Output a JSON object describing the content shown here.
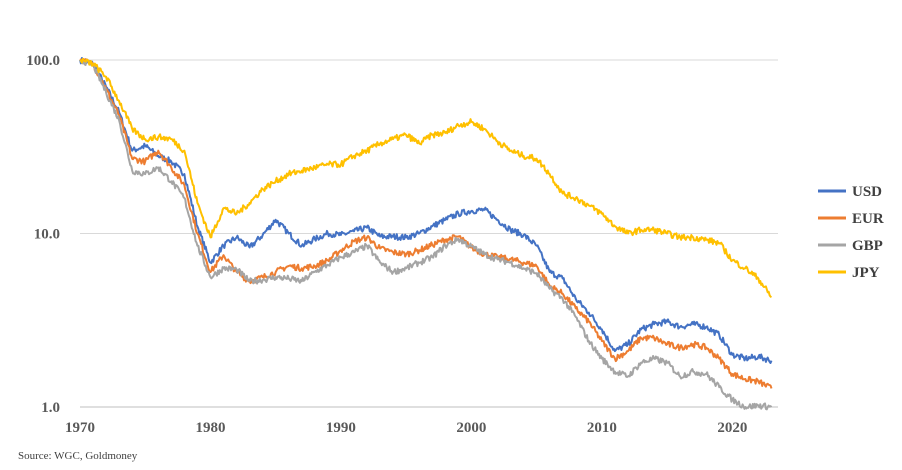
{
  "chart_data": {
    "type": "line",
    "title": "",
    "xlabel": "",
    "ylabel": "",
    "y_scale": "log",
    "xlim": [
      1970,
      2023.5
    ],
    "ylim": [
      1,
      100
    ],
    "x_ticks": [
      "1970",
      "1980",
      "1990",
      "2000",
      "2010",
      "2020"
    ],
    "y_ticks": [
      "1.0",
      "10.0",
      "100.0"
    ],
    "grid": "horizontal",
    "legend_position": "right",
    "series": [
      {
        "name": "USD",
        "color": "#4472C4",
        "points": [
          [
            1970,
            100
          ],
          [
            1971,
            95
          ],
          [
            1972,
            70
          ],
          [
            1973,
            50
          ],
          [
            1974,
            30
          ],
          [
            1975,
            32
          ],
          [
            1976,
            28
          ],
          [
            1977,
            26
          ],
          [
            1978,
            22
          ],
          [
            1979,
            11
          ],
          [
            1980,
            6.8
          ],
          [
            1981,
            8.5
          ],
          [
            1982,
            9.5
          ],
          [
            1983,
            8.3
          ],
          [
            1984,
            9.8
          ],
          [
            1985,
            12
          ],
          [
            1986,
            10
          ],
          [
            1987,
            8.5
          ],
          [
            1988,
            9.3
          ],
          [
            1989,
            10
          ],
          [
            1990,
            9.8
          ],
          [
            1991,
            10.3
          ],
          [
            1992,
            10.8
          ],
          [
            1993,
            9.6
          ],
          [
            1994,
            9.6
          ],
          [
            1995,
            9.5
          ],
          [
            1996,
            10
          ],
          [
            1997,
            11
          ],
          [
            1998,
            12
          ],
          [
            1999,
            13
          ],
          [
            2000,
            13.5
          ],
          [
            2001,
            13.7
          ],
          [
            2002,
            12
          ],
          [
            2003,
            10.5
          ],
          [
            2004,
            9.8
          ],
          [
            2005,
            8.5
          ],
          [
            2006,
            6
          ],
          [
            2007,
            5.5
          ],
          [
            2008,
            4.2
          ],
          [
            2009,
            3.5
          ],
          [
            2010,
            2.8
          ],
          [
            2011,
            2.1
          ],
          [
            2012,
            2.3
          ],
          [
            2013,
            2.8
          ],
          [
            2014,
            3
          ],
          [
            2015,
            3.1
          ],
          [
            2016,
            2.9
          ],
          [
            2017,
            3
          ],
          [
            2018,
            2.9
          ],
          [
            2019,
            2.6
          ],
          [
            2020,
            2
          ],
          [
            2021,
            1.9
          ],
          [
            2022,
            1.95
          ],
          [
            2023,
            1.85
          ]
        ]
      },
      {
        "name": "EUR",
        "color": "#ED7D31",
        "points": [
          [
            1970,
            100
          ],
          [
            1971,
            95
          ],
          [
            1972,
            68
          ],
          [
            1973,
            48
          ],
          [
            1974,
            27
          ],
          [
            1975,
            26
          ],
          [
            1976,
            30
          ],
          [
            1977,
            24
          ],
          [
            1978,
            19
          ],
          [
            1979,
            10
          ],
          [
            1980,
            6
          ],
          [
            1981,
            7.5
          ],
          [
            1982,
            6
          ],
          [
            1983,
            5.3
          ],
          [
            1984,
            5.6
          ],
          [
            1985,
            6
          ],
          [
            1986,
            6.5
          ],
          [
            1987,
            6.3
          ],
          [
            1988,
            6.5
          ],
          [
            1989,
            7
          ],
          [
            1990,
            8
          ],
          [
            1991,
            9
          ],
          [
            1992,
            9.5
          ],
          [
            1993,
            8.2
          ],
          [
            1994,
            7.8
          ],
          [
            1995,
            7.6
          ],
          [
            1996,
            8
          ],
          [
            1997,
            8.6
          ],
          [
            1998,
            9.2
          ],
          [
            1999,
            9.6
          ],
          [
            2000,
            8.3
          ],
          [
            2001,
            7.6
          ],
          [
            2002,
            7.3
          ],
          [
            2003,
            7.1
          ],
          [
            2004,
            6.8
          ],
          [
            2005,
            6.5
          ],
          [
            2006,
            5
          ],
          [
            2007,
            4.5
          ],
          [
            2008,
            3.7
          ],
          [
            2009,
            3.1
          ],
          [
            2010,
            2.4
          ],
          [
            2011,
            1.9
          ],
          [
            2012,
            2.1
          ],
          [
            2013,
            2.5
          ],
          [
            2014,
            2.5
          ],
          [
            2015,
            2.3
          ],
          [
            2016,
            2.2
          ],
          [
            2017,
            2.3
          ],
          [
            2018,
            2.2
          ],
          [
            2019,
            1.9
          ],
          [
            2020,
            1.55
          ],
          [
            2021,
            1.45
          ],
          [
            2022,
            1.4
          ],
          [
            2023,
            1.28
          ]
        ]
      },
      {
        "name": "GBP",
        "color": "#A5A5A5",
        "points": [
          [
            1970,
            100
          ],
          [
            1971,
            94
          ],
          [
            1972,
            65
          ],
          [
            1973,
            45
          ],
          [
            1974,
            23
          ],
          [
            1975,
            22
          ],
          [
            1976,
            24
          ],
          [
            1977,
            20
          ],
          [
            1978,
            16
          ],
          [
            1979,
            8.5
          ],
          [
            1980,
            5.6
          ],
          [
            1981,
            6.3
          ],
          [
            1982,
            6.2
          ],
          [
            1983,
            5.3
          ],
          [
            1984,
            5.4
          ],
          [
            1985,
            5.6
          ],
          [
            1986,
            5.5
          ],
          [
            1987,
            5.3
          ],
          [
            1988,
            6
          ],
          [
            1989,
            6.6
          ],
          [
            1990,
            7.3
          ],
          [
            1991,
            7.8
          ],
          [
            1992,
            8.5
          ],
          [
            1993,
            6.8
          ],
          [
            1994,
            6
          ],
          [
            1995,
            6.3
          ],
          [
            1996,
            6.8
          ],
          [
            1997,
            7.3
          ],
          [
            1998,
            8.5
          ],
          [
            1999,
            9.3
          ],
          [
            2000,
            8.4
          ],
          [
            2001,
            7.6
          ],
          [
            2002,
            7.1
          ],
          [
            2003,
            6.8
          ],
          [
            2004,
            6.3
          ],
          [
            2005,
            5.9
          ],
          [
            2006,
            4.8
          ],
          [
            2007,
            4.2
          ],
          [
            2008,
            3.3
          ],
          [
            2009,
            2.4
          ],
          [
            2010,
            1.9
          ],
          [
            2011,
            1.6
          ],
          [
            2012,
            1.5
          ],
          [
            2013,
            1.8
          ],
          [
            2014,
            1.9
          ],
          [
            2015,
            1.8
          ],
          [
            2016,
            1.5
          ],
          [
            2017,
            1.6
          ],
          [
            2018,
            1.55
          ],
          [
            2019,
            1.3
          ],
          [
            2020,
            1.1
          ],
          [
            2021,
            1.0
          ],
          [
            2022,
            1.02
          ],
          [
            2023,
            1.0
          ]
        ]
      },
      {
        "name": "JPY",
        "color": "#FFC000",
        "points": [
          [
            1970,
            100
          ],
          [
            1971,
            95
          ],
          [
            1972,
            80
          ],
          [
            1973,
            58
          ],
          [
            1974,
            40
          ],
          [
            1975,
            35
          ],
          [
            1976,
            36
          ],
          [
            1977,
            35
          ],
          [
            1978,
            30
          ],
          [
            1979,
            15
          ],
          [
            1980,
            9.5
          ],
          [
            1981,
            14
          ],
          [
            1982,
            13
          ],
          [
            1983,
            15
          ],
          [
            1984,
            18
          ],
          [
            1985,
            20
          ],
          [
            1986,
            22
          ],
          [
            1987,
            23
          ],
          [
            1988,
            24
          ],
          [
            1989,
            25
          ],
          [
            1990,
            25
          ],
          [
            1991,
            28
          ],
          [
            1992,
            30
          ],
          [
            1993,
            33
          ],
          [
            1994,
            35
          ],
          [
            1995,
            37
          ],
          [
            1996,
            33
          ],
          [
            1997,
            37
          ],
          [
            1998,
            38
          ],
          [
            1999,
            42
          ],
          [
            2000,
            44
          ],
          [
            2001,
            40
          ],
          [
            2002,
            34
          ],
          [
            2003,
            30
          ],
          [
            2004,
            28
          ],
          [
            2005,
            27
          ],
          [
            2006,
            22
          ],
          [
            2007,
            17
          ],
          [
            2008,
            16
          ],
          [
            2009,
            14.5
          ],
          [
            2010,
            13
          ],
          [
            2011,
            11
          ],
          [
            2012,
            10
          ],
          [
            2013,
            10.5
          ],
          [
            2014,
            10.5
          ],
          [
            2015,
            10
          ],
          [
            2016,
            9.5
          ],
          [
            2017,
            9.5
          ],
          [
            2018,
            9.2
          ],
          [
            2019,
            8.8
          ],
          [
            2020,
            7
          ],
          [
            2021,
            6.3
          ],
          [
            2022,
            5.5
          ],
          [
            2023,
            4.3
          ]
        ]
      }
    ]
  },
  "source_text": "Source: WGC, Goldmoney"
}
